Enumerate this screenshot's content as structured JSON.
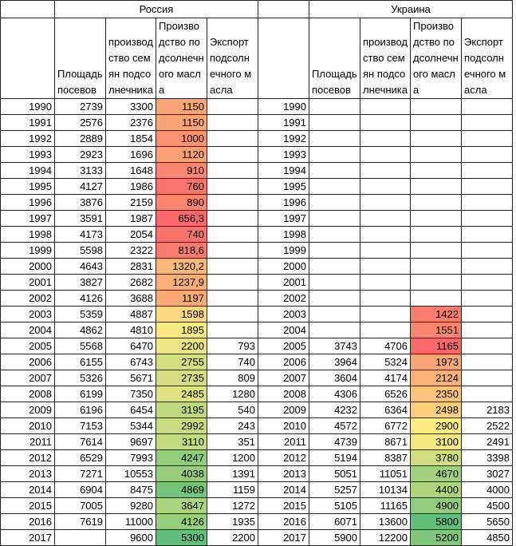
{
  "header": {
    "left": "Россия",
    "right": "Украина"
  },
  "columns_left": [
    "Площадь посевов",
    "производство семян подсолнечника",
    "Производство подсолнечного масла",
    "Экспорт подсолнечного масла"
  ],
  "columns_right": [
    "Площадь посевов",
    "производство семян подсолнечника",
    "Производство подсолнечного масла",
    "Экспорт подсолнечного масла"
  ],
  "color_scale": {
    "columns": [
      3,
      8
    ],
    "low": "#f8696b",
    "mid": "#ffeb84",
    "high": "#63be7b"
  },
  "rows": [
    [
      1990,
      2739,
      3300,
      1150,
      null,
      1990,
      null,
      null,
      null,
      null
    ],
    [
      1991,
      2576,
      2376,
      1150,
      null,
      1991,
      null,
      null,
      null,
      null
    ],
    [
      1992,
      2889,
      1854,
      1000,
      null,
      1992,
      null,
      null,
      null,
      null
    ],
    [
      1993,
      2923,
      1696,
      1120,
      null,
      1993,
      null,
      null,
      null,
      null
    ],
    [
      1994,
      3133,
      1648,
      910,
      null,
      1994,
      null,
      null,
      null,
      null
    ],
    [
      1995,
      4127,
      1986,
      760,
      null,
      1995,
      null,
      null,
      null,
      null
    ],
    [
      1996,
      3876,
      2159,
      890,
      null,
      1996,
      null,
      null,
      null,
      null
    ],
    [
      1997,
      3591,
      1987,
      "656,3",
      null,
      1997,
      null,
      null,
      null,
      null
    ],
    [
      1998,
      4173,
      2054,
      740,
      null,
      1998,
      null,
      null,
      null,
      null
    ],
    [
      1999,
      5598,
      2322,
      "818,6",
      null,
      1999,
      null,
      null,
      null,
      null
    ],
    [
      2000,
      4643,
      2831,
      "1320,2",
      null,
      2000,
      null,
      null,
      null,
      null
    ],
    [
      2001,
      3827,
      2682,
      "1237,9",
      null,
      2001,
      null,
      null,
      null,
      null
    ],
    [
      2002,
      4126,
      3688,
      1197,
      null,
      2002,
      null,
      null,
      null,
      null
    ],
    [
      2003,
      5359,
      4887,
      1598,
      null,
      2003,
      null,
      null,
      1422,
      null
    ],
    [
      2004,
      4862,
      4810,
      1895,
      null,
      2004,
      null,
      null,
      1551,
      null
    ],
    [
      2005,
      5568,
      6470,
      2200,
      793,
      2005,
      3743,
      4706,
      1165,
      null
    ],
    [
      2006,
      6155,
      6743,
      2755,
      740,
      2006,
      3964,
      5324,
      1973,
      null
    ],
    [
      2007,
      5326,
      5671,
      2735,
      809,
      2007,
      3604,
      4174,
      2124,
      null
    ],
    [
      2008,
      6199,
      7350,
      2485,
      1280,
      2008,
      4306,
      6526,
      2350,
      null
    ],
    [
      2009,
      6196,
      6454,
      3195,
      540,
      2009,
      4232,
      6364,
      2498,
      2183
    ],
    [
      2010,
      7153,
      5344,
      2992,
      243,
      2010,
      4572,
      6772,
      2900,
      2522
    ],
    [
      2011,
      7614,
      9697,
      3110,
      351,
      2011,
      4739,
      8671,
      3100,
      2491
    ],
    [
      2012,
      6529,
      7993,
      4247,
      1200,
      2012,
      5194,
      8387,
      3780,
      3398
    ],
    [
      2013,
      7271,
      10553,
      4038,
      1391,
      2013,
      5051,
      11051,
      4670,
      3027
    ],
    [
      2014,
      6904,
      8475,
      4869,
      1159,
      2014,
      5257,
      10134,
      4400,
      4000
    ],
    [
      2015,
      7005,
      9280,
      3647,
      1272,
      2015,
      5105,
      11165,
      4900,
      4500
    ],
    [
      2016,
      7619,
      11000,
      4126,
      1935,
      2016,
      6071,
      13600,
      5800,
      5650
    ],
    [
      2017,
      null,
      9600,
      5300,
      2200,
      2017,
      5900,
      12200,
      5200,
      4850
    ]
  ]
}
